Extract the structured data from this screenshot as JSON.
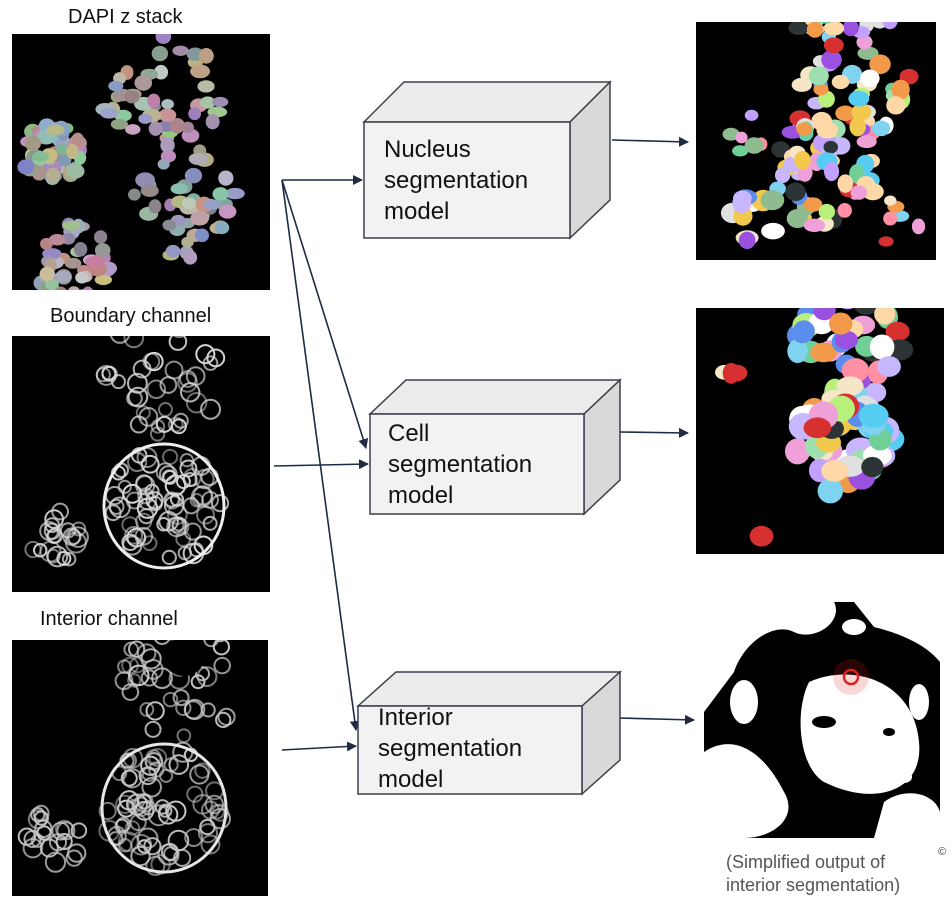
{
  "inputs": {
    "dapi_label": "DAPI z stack",
    "boundary_label": "Boundary channel",
    "interior_label": "Interior channel"
  },
  "models": {
    "nucleus": [
      "Nucleus",
      "segmentation",
      "model"
    ],
    "cell": [
      "Cell",
      "segmentation",
      "model"
    ],
    "interior": [
      "Interior",
      "segmentation",
      "model"
    ]
  },
  "outputs": {
    "interior_caption_line1": "(Simplified output of",
    "interior_caption_line2": "interior segmentation)"
  },
  "copyright_mark": "©",
  "colors": {
    "arrow": "#1f2a44",
    "box_front": "#f2f2f2",
    "box_side": "#d9d9d9",
    "box_stroke": "#3a3f4a",
    "cursor_highlight": "#e02020"
  }
}
